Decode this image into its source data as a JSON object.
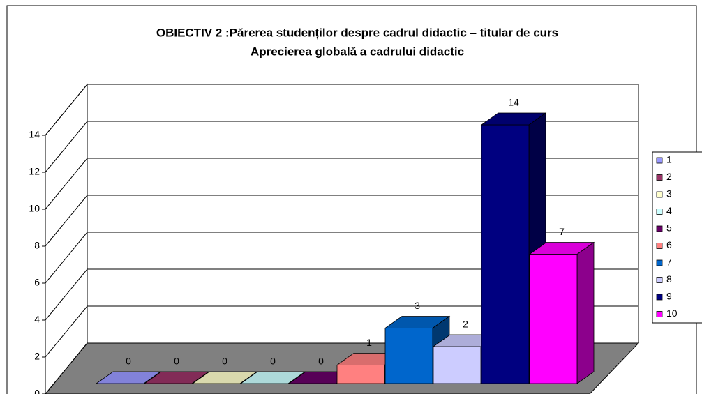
{
  "chart_data": {
    "type": "bar3d",
    "title": "OBIECTIV 2 :Părerea studenților despre cadrul didactic – titular de curs",
    "subtitle": "Aprecierea globală a cadrului didactic",
    "series": [
      {
        "name": "1",
        "color": "#9999FF",
        "values": [
          0
        ]
      },
      {
        "name": "2",
        "color": "#993366",
        "values": [
          0
        ]
      },
      {
        "name": "3",
        "color": "#FFFFCC",
        "values": [
          0
        ]
      },
      {
        "name": "4",
        "color": "#CCFFFF",
        "values": [
          0
        ]
      },
      {
        "name": "5",
        "color": "#660066",
        "values": [
          0
        ]
      },
      {
        "name": "6",
        "color": "#FF8080",
        "values": [
          1
        ]
      },
      {
        "name": "7",
        "color": "#0066CC",
        "values": [
          3
        ]
      },
      {
        "name": "8",
        "color": "#CCCCFF",
        "values": [
          2
        ]
      },
      {
        "name": "9",
        "color": "#000080",
        "values": [
          14
        ]
      },
      {
        "name": "10",
        "color": "#FF00FF",
        "values": [
          7
        ]
      }
    ],
    "ylim": [
      0,
      14
    ],
    "yticks": [
      0,
      2,
      4,
      6,
      8,
      10,
      12,
      14
    ],
    "grid": true,
    "legend": "right",
    "floor_color": "#808080"
  }
}
